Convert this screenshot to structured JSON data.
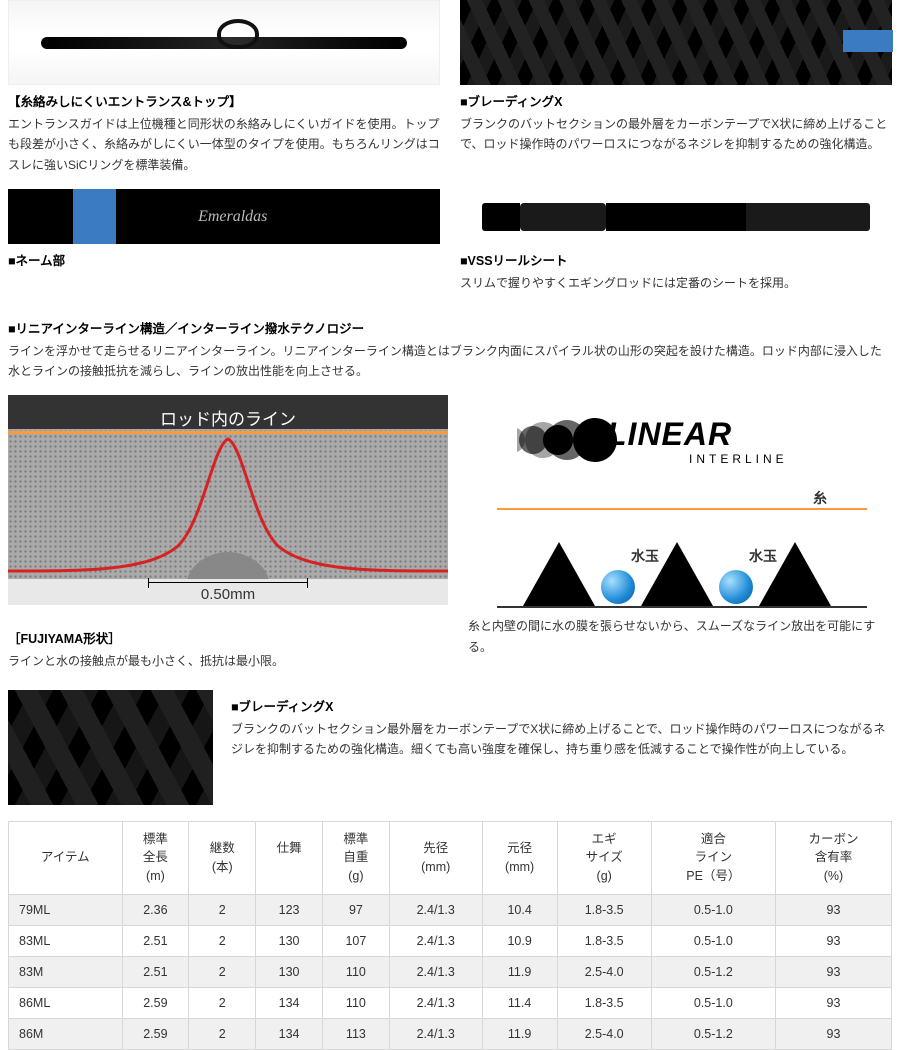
{
  "features": {
    "entrance": {
      "title": "【糸絡みしにくいエントランス&トップ】",
      "desc": "エントランスガイドは上位機種と同形状の糸絡みしにくいガイドを使用。トップも段差が小さく、糸絡みがしにくい一体型のタイプを使用。もちろんリングはコスレに強いSiCリングを標準装備。"
    },
    "braiding": {
      "title": "■ブレーディングX",
      "desc": "ブランクのバットセクションの最外層をカーボンテープでX状に締め上げることで、ロッド操作時のパワーロスにつながるネジレを抑制するための強化構造。"
    },
    "name_part": {
      "title": "■ネーム部",
      "brand_text": "Emeraldas"
    },
    "vss": {
      "title": "■VSSリールシート",
      "desc": "スリムで握りやすくエギングロッドには定番のシートを採用。"
    }
  },
  "linear": {
    "title": "■リニアインターライン構造／インターライン撥水テクノロジー",
    "desc": "ラインを浮かせて走らせるリニアインターライン。リニアインターライン構造とはブランク内面にスパイラル状の山形の突起を設けた構造。ロッド内部に浸入した水とラインの接触抵抗を減らし、ラインの放出性能を向上させる。",
    "logo_main": "LINEAR",
    "logo_sub": "INTERLINE"
  },
  "fujiyama": {
    "img_label": "ロッド内のライン",
    "scale": "0.50mm",
    "caption_title": "［FUJIYAMA形状］",
    "caption_desc": "ラインと水の接触点が最も小さく、抵抗は最小限。"
  },
  "thread_diagram": {
    "thread_label": "糸",
    "drop_label": "水玉",
    "desc": "糸と内壁の間に水の膜を張らせないから、スムーズなライン放出を可能にする。"
  },
  "braiding2": {
    "title": "■ブレーディングX",
    "desc": "ブランクのバットセクション最外層をカーボンテープでX状に締め上げることで、ロッド操作時のパワーロスにつながるネジレを抑制するための強化構造。細くても高い強度を確保し、持ち重り感を低減することで操作性が向上している。"
  },
  "table": {
    "columns": [
      "アイテム",
      "標準\n全長\n(m)",
      "継数\n(本)",
      "仕舞\n\n",
      "標準\n自重\n(g)",
      "先径\n(mm)",
      "元径\n(mm)",
      "エギ\nサイズ\n(g)",
      "適合\nライン\nPE（号）",
      "カーボン\n含有率\n(%)"
    ],
    "rows": [
      [
        "79ML",
        "2.36",
        "2",
        "123",
        "97",
        "2.4/1.3",
        "10.4",
        "1.8-3.5",
        "0.5-1.0",
        "93"
      ],
      [
        "83ML",
        "2.51",
        "2",
        "130",
        "107",
        "2.4/1.3",
        "10.9",
        "1.8-3.5",
        "0.5-1.0",
        "93"
      ],
      [
        "83M",
        "2.51",
        "2",
        "130",
        "110",
        "2.4/1.3",
        "11.9",
        "2.5-4.0",
        "0.5-1.2",
        "93"
      ],
      [
        "86ML",
        "2.59",
        "2",
        "134",
        "110",
        "2.4/1.3",
        "11.4",
        "1.8-3.5",
        "0.5-1.0",
        "93"
      ],
      [
        "86M",
        "2.59",
        "2",
        "134",
        "113",
        "2.4/1.3",
        "11.9",
        "2.5-4.0",
        "0.5-1.2",
        "93"
      ]
    ]
  },
  "colors": {
    "curve": "#d62222",
    "orange_line": "#ff9a3c",
    "drop_blue": "#1e8ad6",
    "rod_blue": "#3b7bc1"
  }
}
